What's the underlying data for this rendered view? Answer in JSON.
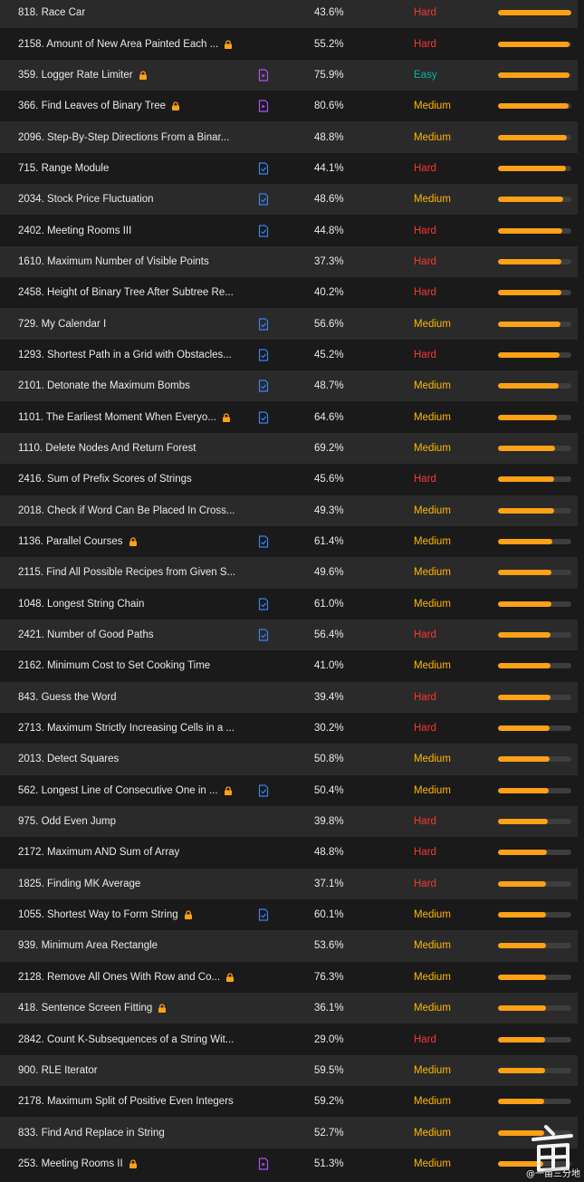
{
  "colors": {
    "row_alt": "#2a2a2a",
    "row_plain": "#1a1a1a",
    "hard": "#f63636",
    "medium": "#ffb800",
    "easy": "#00b8a3",
    "frequency_fill": "#ffa116",
    "frequency_track": "#3e3e3e",
    "lock": "#ffa116",
    "video_solution": "#a855f7",
    "article_solution": "#3b82f6"
  },
  "problems": [
    {
      "title": "818. Race Car",
      "locked": false,
      "solution": "none",
      "acceptance": "43.6%",
      "difficulty": "Hard",
      "frequency": 1.0
    },
    {
      "title": "2158. Amount of New Area Painted Each ...",
      "locked": true,
      "solution": "none",
      "acceptance": "55.2%",
      "difficulty": "Hard",
      "frequency": 0.98
    },
    {
      "title": "359. Logger Rate Limiter",
      "locked": true,
      "solution": "video",
      "acceptance": "75.9%",
      "difficulty": "Easy",
      "frequency": 0.97
    },
    {
      "title": "366. Find Leaves of Binary Tree",
      "locked": true,
      "solution": "video",
      "acceptance": "80.6%",
      "difficulty": "Medium",
      "frequency": 0.96
    },
    {
      "title": "2096. Step-By-Step Directions From a Binar...",
      "locked": false,
      "solution": "none",
      "acceptance": "48.8%",
      "difficulty": "Medium",
      "frequency": 0.94
    },
    {
      "title": "715. Range Module",
      "locked": false,
      "solution": "article",
      "acceptance": "44.1%",
      "difficulty": "Hard",
      "frequency": 0.92
    },
    {
      "title": "2034. Stock Price Fluctuation",
      "locked": false,
      "solution": "article",
      "acceptance": "48.6%",
      "difficulty": "Medium",
      "frequency": 0.89
    },
    {
      "title": "2402. Meeting Rooms III",
      "locked": false,
      "solution": "article",
      "acceptance": "44.8%",
      "difficulty": "Hard",
      "frequency": 0.88
    },
    {
      "title": "1610. Maximum Number of Visible Points",
      "locked": false,
      "solution": "none",
      "acceptance": "37.3%",
      "difficulty": "Hard",
      "frequency": 0.87
    },
    {
      "title": "2458. Height of Binary Tree After Subtree Re...",
      "locked": false,
      "solution": "none",
      "acceptance": "40.2%",
      "difficulty": "Hard",
      "frequency": 0.86
    },
    {
      "title": "729. My Calendar I",
      "locked": false,
      "solution": "article",
      "acceptance": "56.6%",
      "difficulty": "Medium",
      "frequency": 0.85
    },
    {
      "title": "1293. Shortest Path in a Grid with Obstacles...",
      "locked": false,
      "solution": "article",
      "acceptance": "45.2%",
      "difficulty": "Hard",
      "frequency": 0.84
    },
    {
      "title": "2101. Detonate the Maximum Bombs",
      "locked": false,
      "solution": "article",
      "acceptance": "48.7%",
      "difficulty": "Medium",
      "frequency": 0.83
    },
    {
      "title": "1101. The Earliest Moment When Everyo...",
      "locked": true,
      "solution": "article",
      "acceptance": "64.6%",
      "difficulty": "Medium",
      "frequency": 0.8
    },
    {
      "title": "1110. Delete Nodes And Return Forest",
      "locked": false,
      "solution": "none",
      "acceptance": "69.2%",
      "difficulty": "Medium",
      "frequency": 0.78
    },
    {
      "title": "2416. Sum of Prefix Scores of Strings",
      "locked": false,
      "solution": "none",
      "acceptance": "45.6%",
      "difficulty": "Hard",
      "frequency": 0.76
    },
    {
      "title": "2018. Check if Word Can Be Placed In Cross...",
      "locked": false,
      "solution": "none",
      "acceptance": "49.3%",
      "difficulty": "Medium",
      "frequency": 0.76
    },
    {
      "title": "1136. Parallel Courses",
      "locked": true,
      "solution": "article",
      "acceptance": "61.4%",
      "difficulty": "Medium",
      "frequency": 0.74
    },
    {
      "title": "2115. Find All Possible Recipes from Given S...",
      "locked": false,
      "solution": "none",
      "acceptance": "49.6%",
      "difficulty": "Medium",
      "frequency": 0.73
    },
    {
      "title": "1048. Longest String Chain",
      "locked": false,
      "solution": "article",
      "acceptance": "61.0%",
      "difficulty": "Medium",
      "frequency": 0.73
    },
    {
      "title": "2421. Number of Good Paths",
      "locked": false,
      "solution": "article",
      "acceptance": "56.4%",
      "difficulty": "Hard",
      "frequency": 0.72
    },
    {
      "title": "2162. Minimum Cost to Set Cooking Time",
      "locked": false,
      "solution": "none",
      "acceptance": "41.0%",
      "difficulty": "Medium",
      "frequency": 0.71
    },
    {
      "title": "843. Guess the Word",
      "locked": false,
      "solution": "none",
      "acceptance": "39.4%",
      "difficulty": "Hard",
      "frequency": 0.71
    },
    {
      "title": "2713. Maximum Strictly Increasing Cells in a ...",
      "locked": false,
      "solution": "none",
      "acceptance": "30.2%",
      "difficulty": "Hard",
      "frequency": 0.7
    },
    {
      "title": "2013. Detect Squares",
      "locked": false,
      "solution": "none",
      "acceptance": "50.8%",
      "difficulty": "Medium",
      "frequency": 0.7
    },
    {
      "title": "562. Longest Line of Consecutive One in ...",
      "locked": true,
      "solution": "article",
      "acceptance": "50.4%",
      "difficulty": "Medium",
      "frequency": 0.69
    },
    {
      "title": "975. Odd Even Jump",
      "locked": false,
      "solution": "none",
      "acceptance": "39.8%",
      "difficulty": "Hard",
      "frequency": 0.68
    },
    {
      "title": "2172. Maximum AND Sum of Array",
      "locked": false,
      "solution": "none",
      "acceptance": "48.8%",
      "difficulty": "Hard",
      "frequency": 0.67
    },
    {
      "title": "1825. Finding MK Average",
      "locked": false,
      "solution": "none",
      "acceptance": "37.1%",
      "difficulty": "Hard",
      "frequency": 0.66
    },
    {
      "title": "1055. Shortest Way to Form String",
      "locked": true,
      "solution": "article",
      "acceptance": "60.1%",
      "difficulty": "Medium",
      "frequency": 0.66
    },
    {
      "title": "939. Minimum Area Rectangle",
      "locked": false,
      "solution": "none",
      "acceptance": "53.6%",
      "difficulty": "Medium",
      "frequency": 0.65
    },
    {
      "title": "2128. Remove All Ones With Row and Co...",
      "locked": true,
      "solution": "none",
      "acceptance": "76.3%",
      "difficulty": "Medium",
      "frequency": 0.65
    },
    {
      "title": "418. Sentence Screen Fitting",
      "locked": true,
      "solution": "none",
      "acceptance": "36.1%",
      "difficulty": "Medium",
      "frequency": 0.65
    },
    {
      "title": "2842. Count K-Subsequences of a String Wit...",
      "locked": false,
      "solution": "none",
      "acceptance": "29.0%",
      "difficulty": "Hard",
      "frequency": 0.64
    },
    {
      "title": "900. RLE Iterator",
      "locked": false,
      "solution": "none",
      "acceptance": "59.5%",
      "difficulty": "Medium",
      "frequency": 0.64
    },
    {
      "title": "2178. Maximum Split of Positive Even Integers",
      "locked": false,
      "solution": "none",
      "acceptance": "59.2%",
      "difficulty": "Medium",
      "frequency": 0.63
    },
    {
      "title": "833. Find And Replace in String",
      "locked": false,
      "solution": "none",
      "acceptance": "52.7%",
      "difficulty": "Medium",
      "frequency": 0.63
    },
    {
      "title": "253. Meeting Rooms II",
      "locked": true,
      "solution": "video",
      "acceptance": "51.3%",
      "difficulty": "Medium",
      "frequency": 0.62
    }
  ],
  "watermark": {
    "text": "@一亩三分地"
  }
}
